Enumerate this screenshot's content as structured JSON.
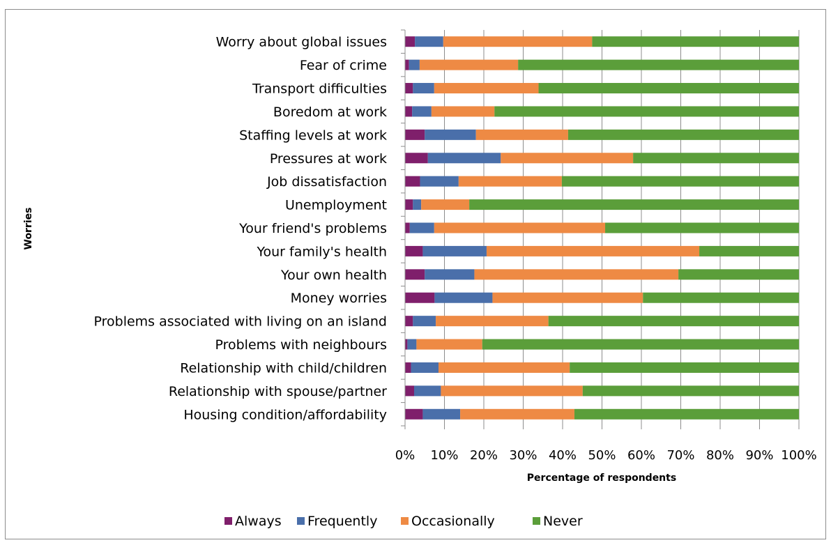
{
  "chart_data": {
    "type": "bar",
    "orientation": "horizontal",
    "stacked": "percent",
    "xlabel": "Percentage of respondents",
    "ylabel": "Worries",
    "xlim": [
      0,
      100
    ],
    "xticks": [
      "0%",
      "10%",
      "20%",
      "30%",
      "40%",
      "50%",
      "60%",
      "70%",
      "80%",
      "90%",
      "100%"
    ],
    "grid": true,
    "legend_position": "bottom",
    "categories": [
      "Worry about global issues",
      "Fear of crime",
      "Transport difficulties",
      "Boredom at work",
      "Staffing levels at work",
      "Pressures at work",
      "Job dissatisfaction",
      "Unemployment",
      "Your friend's problems",
      "Your family's health",
      "Your own health",
      "Money worries",
      "Problems associated with living on an island",
      "Problems with neighbours",
      "Relationship with child/children",
      "Relationship with spouse/partner",
      "Housing condition/affordability"
    ],
    "series": [
      {
        "name": "Always",
        "color": "#7f1f6b",
        "values": [
          2.5,
          1,
          2,
          1.8,
          5,
          5.8,
          3.8,
          2,
          1.2,
          4.5,
          5,
          7.5,
          2,
          0.6,
          1.5,
          2.3,
          4.5
        ]
      },
      {
        "name": "Frequently",
        "color": "#4a6faa",
        "values": [
          7.2,
          2.7,
          5.4,
          4.9,
          13,
          18.5,
          9.8,
          2.1,
          6.2,
          16.2,
          12.6,
          14.7,
          5.8,
          2.3,
          7,
          6.8,
          9.5
        ]
      },
      {
        "name": "Occasionally",
        "color": "#ee8a44",
        "values": [
          37.8,
          25,
          26.5,
          16,
          23.4,
          33.6,
          26.2,
          12.2,
          43.4,
          54,
          51.8,
          38.2,
          28.6,
          16.7,
          33.3,
          36,
          29
        ]
      },
      {
        "name": "Never",
        "color": "#5b9e3a",
        "values": [
          52.5,
          71.3,
          66.1,
          77.3,
          58.6,
          42.1,
          60.2,
          83.7,
          49.2,
          25.3,
          30.6,
          39.6,
          63.6,
          80.4,
          58.2,
          54.9,
          57
        ]
      }
    ]
  }
}
